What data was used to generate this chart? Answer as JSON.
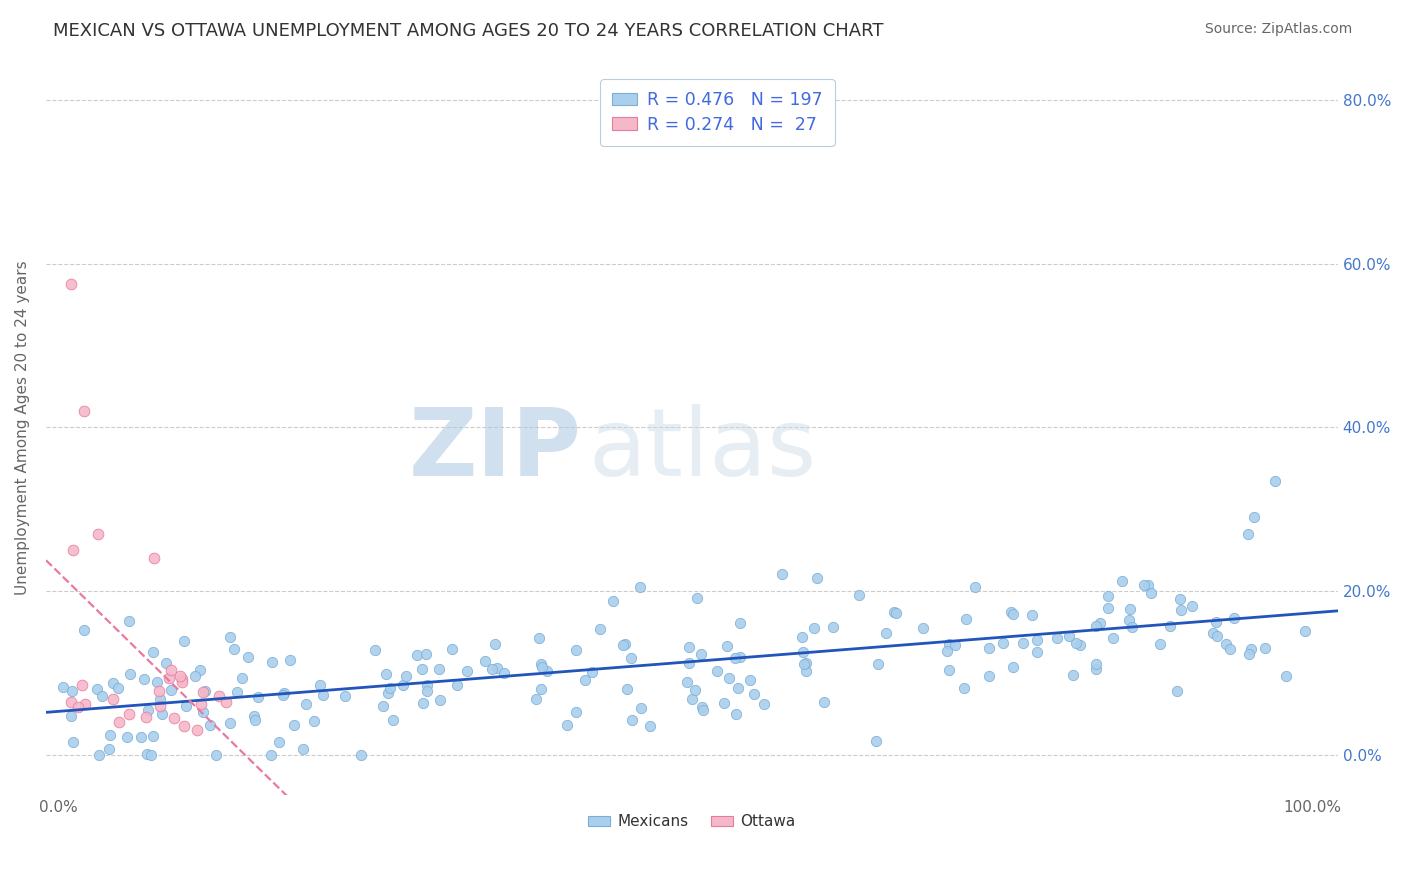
{
  "title": "MEXICAN VS OTTAWA UNEMPLOYMENT AMONG AGES 20 TO 24 YEARS CORRELATION CHART",
  "source": "Source: ZipAtlas.com",
  "ylabel": "Unemployment Among Ages 20 to 24 years",
  "xlim": [
    -0.01,
    1.02
  ],
  "ylim": [
    -0.05,
    0.85
  ],
  "mexican_R": 0.476,
  "mexican_N": 197,
  "ottawa_R": 0.274,
  "ottawa_N": 27,
  "mexican_color": "#aacfed",
  "mexican_edge": "#7aaed6",
  "ottawa_color": "#f5b8c8",
  "ottawa_edge": "#e87aa0",
  "trendline_mexican_color": "#2255bb",
  "trendline_ottawa_color": "#e87aa0",
  "background_color": "#ffffff",
  "title_color": "#333333",
  "title_fontsize": 13,
  "source_fontsize": 10,
  "ytick_labels": [
    "0.0%",
    "20.0%",
    "40.0%",
    "60.0%",
    "80.0%"
  ],
  "ytick_values": [
    0.0,
    0.2,
    0.4,
    0.6,
    0.8
  ],
  "xtick_labels": [
    "0.0%",
    "",
    "",
    "",
    "",
    "100.0%"
  ],
  "xtick_values": [
    0.0,
    0.2,
    0.4,
    0.6,
    0.8,
    1.0
  ]
}
